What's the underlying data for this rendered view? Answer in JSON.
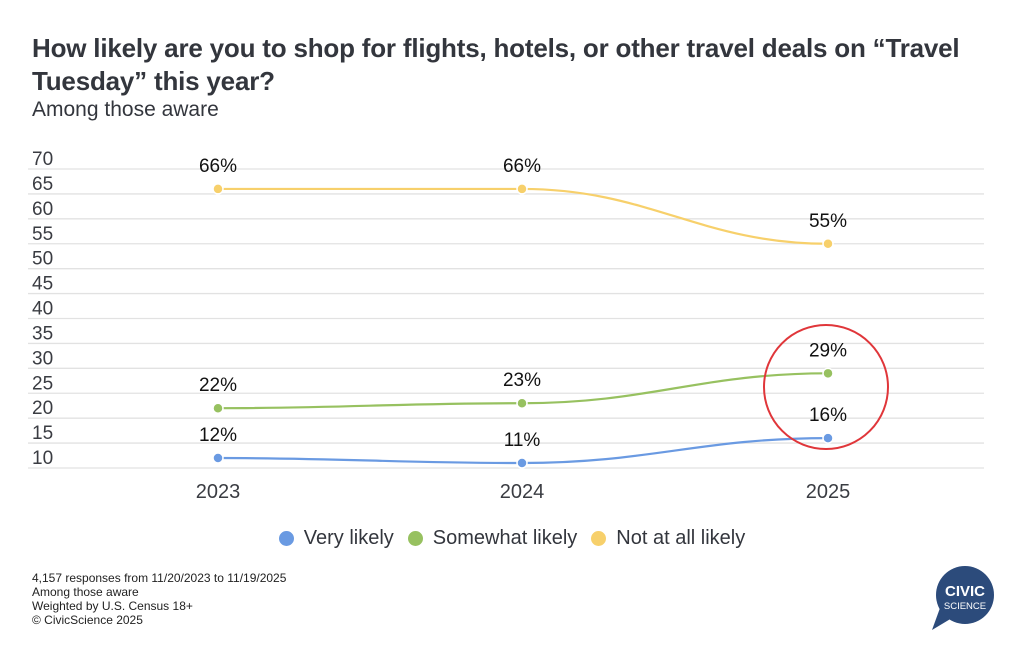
{
  "header": {
    "title": "How likely are you to shop for flights, hotels, or other travel deals on “Travel Tuesday” this year?",
    "subtitle": "Among those aware"
  },
  "chart_data": {
    "type": "line",
    "title": "How likely are you to shop for flights, hotels, or other travel deals on “Travel Tuesday” this year?",
    "subtitle": "Among those aware",
    "xlabel": "",
    "ylabel": "",
    "categories": [
      "2023",
      "2024",
      "2025"
    ],
    "ylim": [
      10,
      70
    ],
    "yticks": [
      "70",
      "65",
      "60",
      "55",
      "50",
      "45",
      "40",
      "35",
      "30",
      "25",
      "20",
      "15",
      "10"
    ],
    "grid": true,
    "legend_position": "bottom",
    "series": [
      {
        "name": "Very likely",
        "color": "#6a9ae2",
        "values": [
          12,
          11,
          16
        ],
        "labels": [
          "12%",
          "11%",
          "16%"
        ]
      },
      {
        "name": "Somewhat likely",
        "color": "#97c160",
        "values": [
          22,
          23,
          29
        ],
        "labels": [
          "22%",
          "23%",
          "29%"
        ]
      },
      {
        "name": "Not at all likely",
        "color": "#f7d06b",
        "values": [
          66,
          66,
          55
        ],
        "labels": [
          "66%",
          "66%",
          "55%"
        ]
      }
    ],
    "annotation": {
      "type": "circle",
      "color": "#e0363a",
      "highlights": "2025 values (29%, 16%)"
    }
  },
  "footnotes": [
    "4,157 responses from 11/20/2023 to 11/19/2025",
    "Among those aware",
    "Weighted by U.S. Census 18+",
    "© CivicScience 2025"
  ],
  "logo": {
    "line1": "CIVIC",
    "line2": "SCIENCE",
    "color": "#2c4b7b"
  }
}
